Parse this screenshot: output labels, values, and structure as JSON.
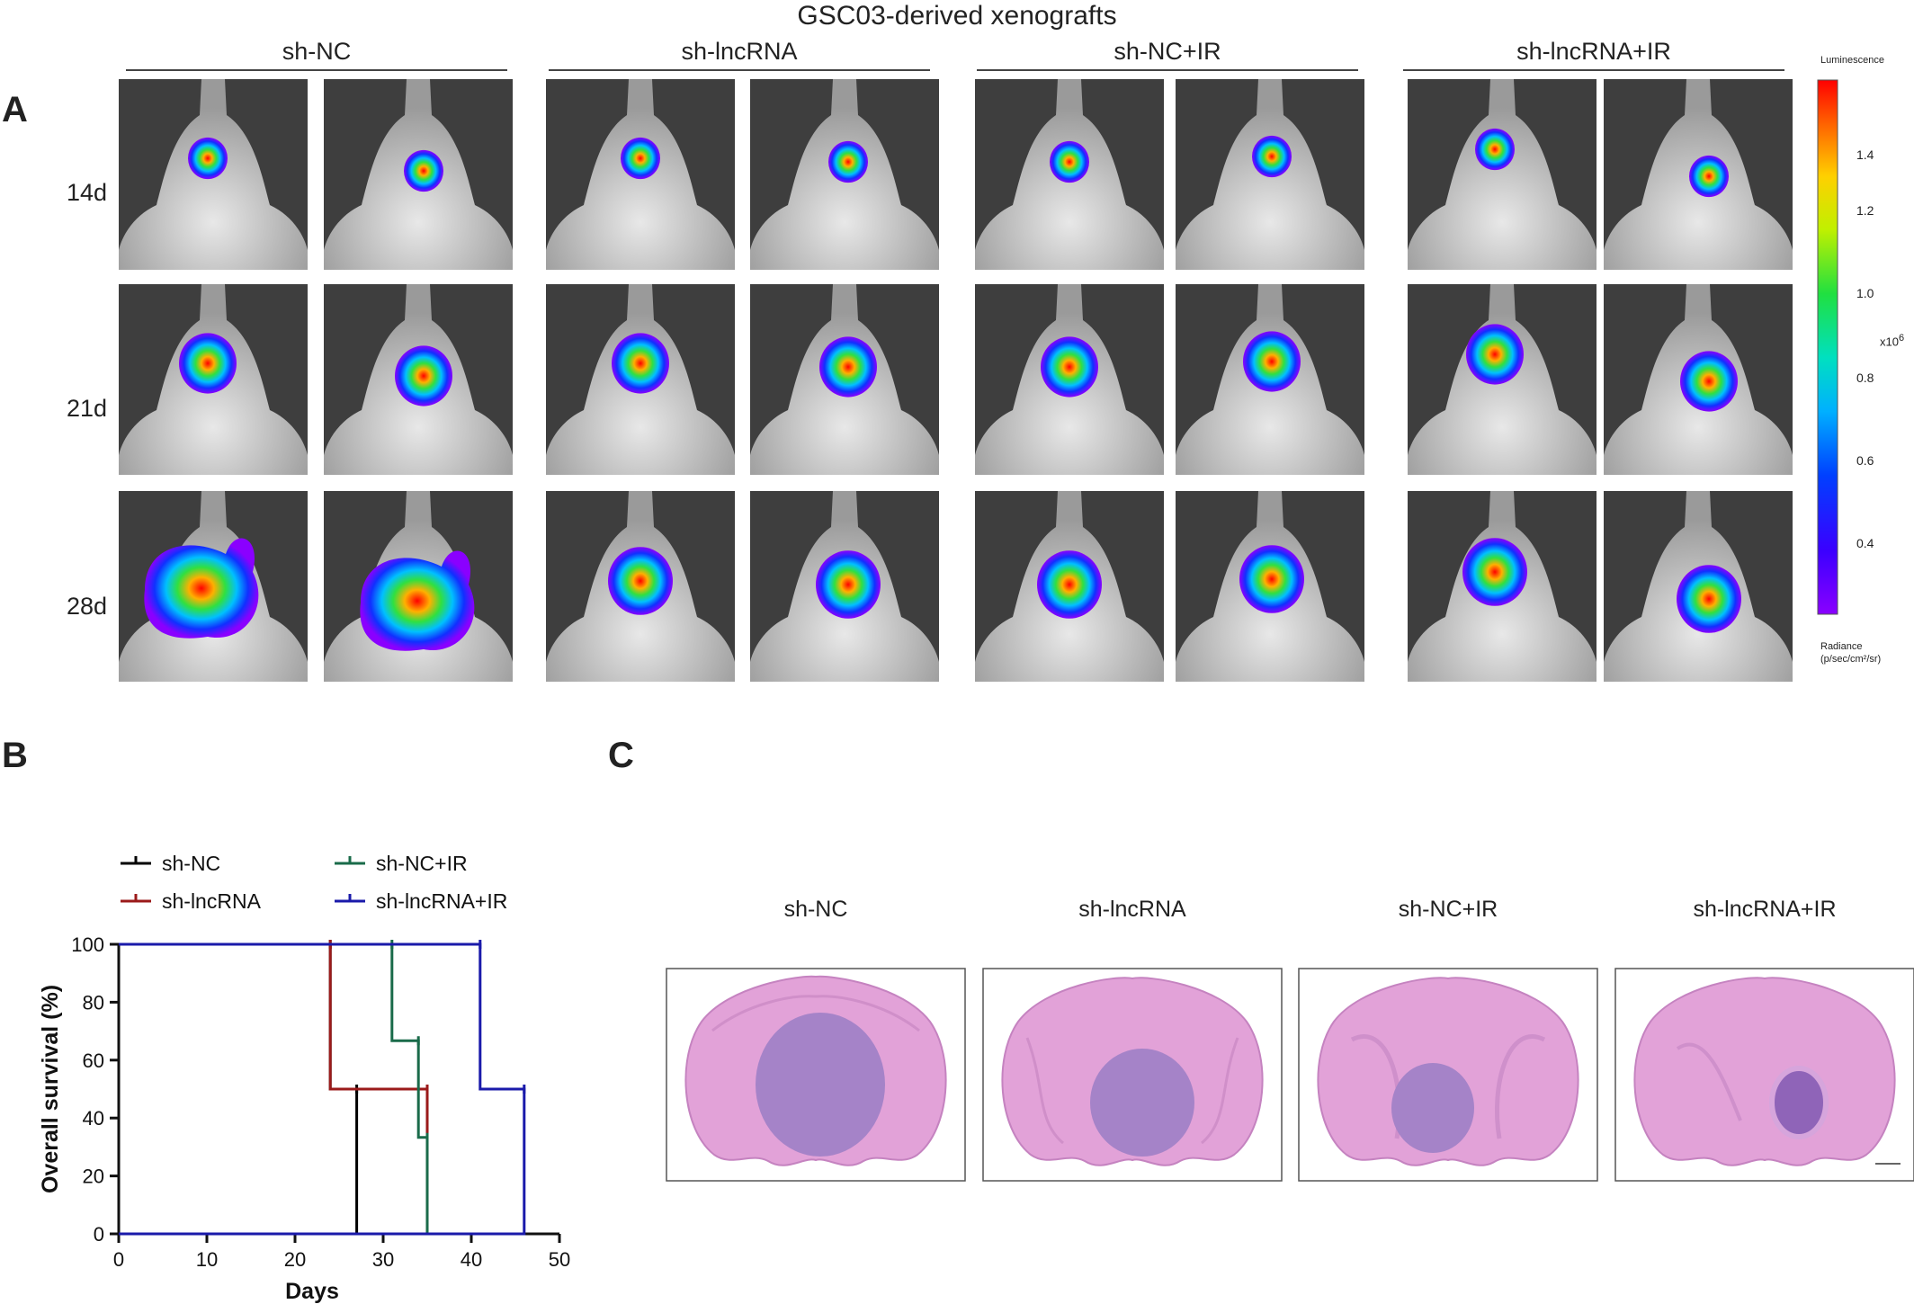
{
  "figure_title": "GSC03-derived xenografts",
  "panel_a": {
    "letter": "A",
    "groups": [
      "sh-NC",
      "sh-lncRNA",
      "sh-NC+IR",
      "sh-lncRNA+IR"
    ],
    "timepoints": [
      "14d",
      "21d",
      "28d"
    ],
    "colorbar": {
      "title": "Luminescence",
      "ticks": [
        "1.4",
        "1.2",
        "1.0",
        "0.8",
        "0.6",
        "0.4"
      ],
      "tick_values": [
        1.4,
        1.2,
        1.0,
        0.8,
        0.6,
        0.4
      ],
      "range": [
        0.25,
        1.5
      ],
      "multiplier_base": "x10",
      "multiplier_exp": "6",
      "unit_line1": "Radiance",
      "unit_line2": "(p/sec/cm²/sr)"
    },
    "tumor_signal_shape": [
      [
        "round",
        "round",
        "round",
        "round",
        "round",
        "round",
        "round",
        "round"
      ],
      [
        "round",
        "round",
        "round",
        "round",
        "round",
        "round",
        "round",
        "round"
      ],
      [
        "large-irregular",
        "large-irregular",
        "round",
        "round",
        "round",
        "round",
        "round",
        "round"
      ]
    ]
  },
  "panel_b": {
    "letter": "B",
    "chart_data": {
      "type": "line",
      "subtype": "kaplan-meier-step",
      "xlabel": "Days",
      "ylabel": "Overall survival (%)",
      "xlim": [
        0,
        50
      ],
      "ylim": [
        0,
        100
      ],
      "xticks": [
        "0",
        "10",
        "20",
        "30",
        "40",
        "50"
      ],
      "yticks": [
        "0",
        "20",
        "40",
        "60",
        "80",
        "100"
      ],
      "grid": false,
      "legend_position": "top",
      "series": [
        {
          "name": "sh-NC",
          "color": "#000000",
          "x": [
            0,
            24,
            27
          ],
          "y": [
            100,
            50,
            0
          ]
        },
        {
          "name": "sh-lncRNA",
          "color": "#9b1a1a",
          "x": [
            0,
            24,
            35
          ],
          "y": [
            100,
            50,
            0
          ]
        },
        {
          "name": "sh-NC+IR",
          "color": "#1a6b4a",
          "x": [
            0,
            31,
            34,
            35
          ],
          "y": [
            100,
            66.7,
            33.3,
            0
          ]
        },
        {
          "name": "sh-lncRNA+IR",
          "color": "#1a1aaa",
          "x": [
            0,
            41,
            46
          ],
          "y": [
            100,
            50,
            0
          ]
        }
      ]
    }
  },
  "panel_c": {
    "letter": "C",
    "labels": [
      "sh-NC",
      "sh-lncRNA",
      "sh-NC+IR",
      "sh-lncRNA+IR"
    ]
  }
}
